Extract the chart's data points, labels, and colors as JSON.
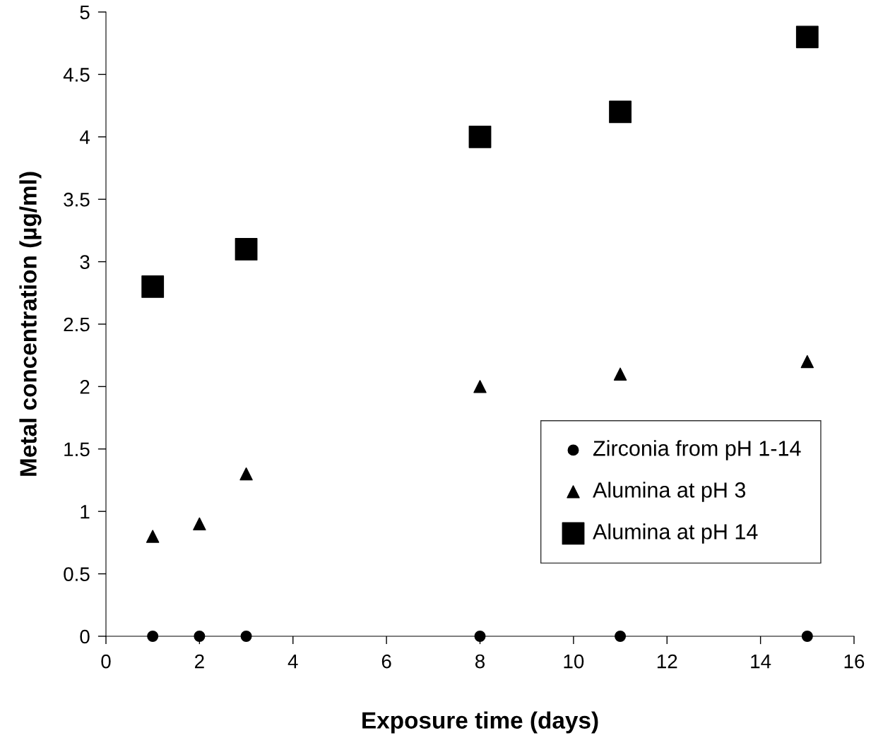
{
  "chart_data": {
    "type": "scatter",
    "xlabel": "Exposure time (days)",
    "ylabel": "Metal concentration (µg/ml)",
    "x": [
      1,
      2,
      3,
      8,
      11,
      15
    ],
    "series": [
      {
        "name": "Zirconia from pH 1-14",
        "color": "#000000",
        "marker": "circle",
        "values": [
          0,
          0,
          0,
          0,
          0,
          0
        ]
      },
      {
        "name": "Alumina at pH 3",
        "color": "#000000",
        "marker": "triangle",
        "values": [
          0.8,
          0.9,
          1.3,
          2.0,
          2.1,
          2.2
        ]
      },
      {
        "name": "Alumina at pH 14",
        "color": "#000000",
        "marker": "square",
        "x": [
          1,
          3,
          8,
          11,
          15
        ],
        "values": [
          2.8,
          3.1,
          4.0,
          4.2,
          4.8
        ]
      }
    ],
    "xlim": [
      0,
      16
    ],
    "xticks": [
      0,
      2,
      4,
      6,
      8,
      10,
      12,
      14,
      16
    ],
    "ylim": [
      0,
      5
    ],
    "yticks": [
      0,
      0.5,
      1,
      1.5,
      2,
      2.5,
      3,
      3.5,
      4,
      4.5,
      5
    ],
    "grid": false,
    "legend": "lower right"
  }
}
